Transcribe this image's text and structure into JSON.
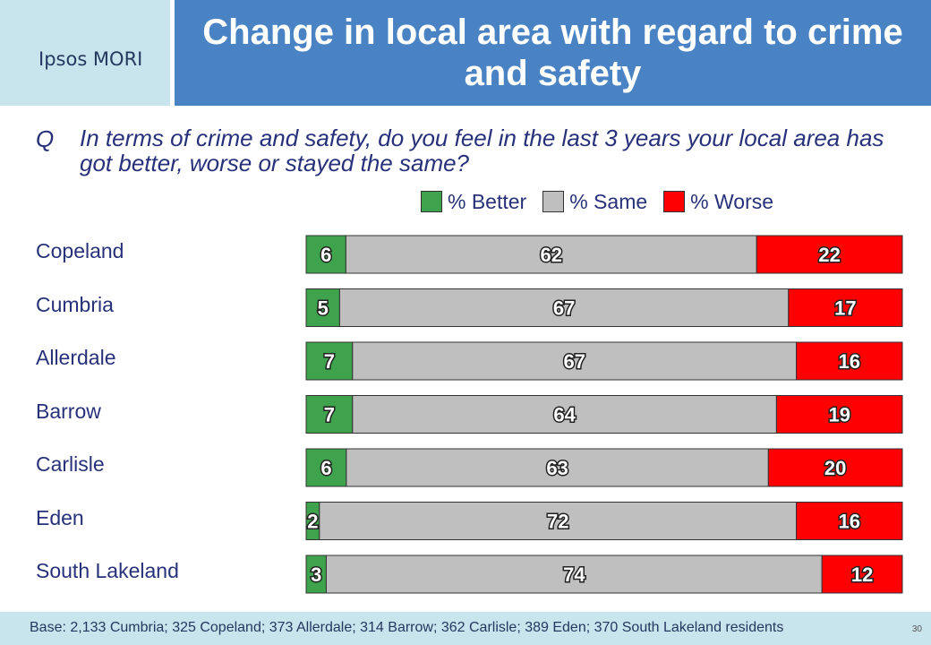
{
  "header": {
    "logo": "Ipsos MORI",
    "title": "Change in local area with regard to crime and safety"
  },
  "question": {
    "prefix": "Q",
    "text": "In terms of crime and safety, do you feel in the last 3 years your local area has got better, worse or stayed the same?"
  },
  "legend": {
    "better": "% Better",
    "same": "% Same",
    "worse": "% Worse"
  },
  "colors": {
    "better": "#3fa34d",
    "same": "#bfbfbf",
    "worse": "#ff0000",
    "title_bg": "#4a83c4",
    "logo_bg": "#c8e4ec"
  },
  "chart_data": {
    "type": "bar",
    "orientation": "horizontal",
    "stacked": true,
    "categories": [
      "Copeland",
      "Cumbria",
      "Allerdale",
      "Barrow",
      "Carlisle",
      "Eden",
      "South Lakeland"
    ],
    "series": [
      {
        "name": "% Better",
        "values": [
          6,
          5,
          7,
          7,
          6,
          2,
          3
        ]
      },
      {
        "name": "% Same",
        "values": [
          62,
          67,
          67,
          64,
          63,
          72,
          74
        ]
      },
      {
        "name": "% Worse",
        "values": [
          22,
          17,
          16,
          19,
          20,
          16,
          12
        ]
      }
    ],
    "legend_position": "top"
  },
  "footer": {
    "base": "Base: 2,133 Cumbria; 325 Copeland; 373 Allerdale; 314 Barrow; 362 Carlisle; 389 Eden; 370 South Lakeland residents",
    "page": "30"
  }
}
